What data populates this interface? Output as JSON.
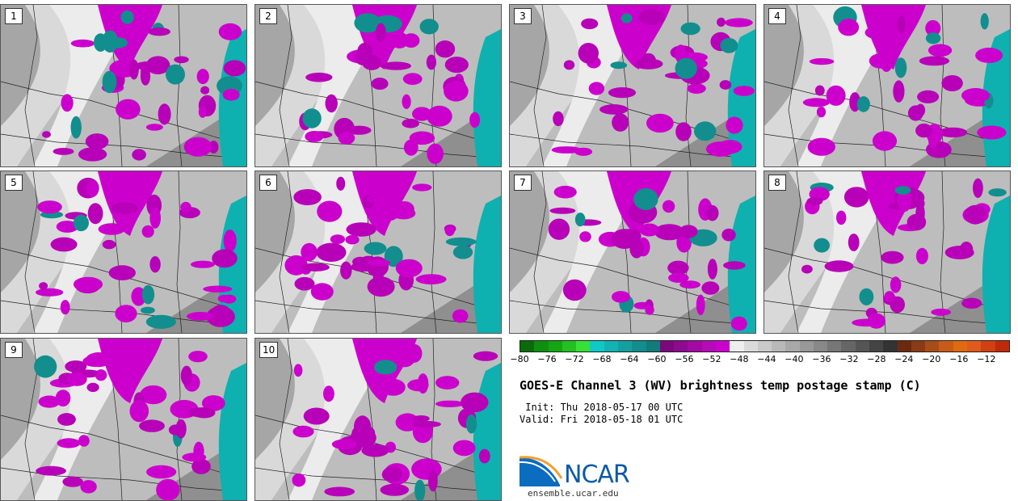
{
  "panels": [
    {
      "label": "1"
    },
    {
      "label": "2"
    },
    {
      "label": "3"
    },
    {
      "label": "4"
    },
    {
      "label": "5"
    },
    {
      "label": "6"
    },
    {
      "label": "7"
    },
    {
      "label": "8"
    },
    {
      "label": "9"
    },
    {
      "label": "10"
    }
  ],
  "legend": {
    "ticks": [
      "−80",
      "−76",
      "−72",
      "−68",
      "−64",
      "−60",
      "−56",
      "−52",
      "−48",
      "−44",
      "−40",
      "−36",
      "−32",
      "−28",
      "−24",
      "−20",
      "−16",
      "−12"
    ],
    "colors": [
      "#0a6b0a",
      "#0f8f0f",
      "#13a513",
      "#22c022",
      "#36e136",
      "#0fc9c9",
      "#12b3b3",
      "#13a0a0",
      "#128e8e",
      "#117c7c",
      "#7a0a7a",
      "#8f0a8f",
      "#a30aa3",
      "#b70ab7",
      "#cc00cc",
      "#eeeeee",
      "#dadada",
      "#c9c9c9",
      "#b8b8b8",
      "#a8a8a8",
      "#989898",
      "#888888",
      "#777777",
      "#666666",
      "#555555",
      "#444444",
      "#333333",
      "#6b2a10",
      "#8a3a14",
      "#a84c18",
      "#c85c16",
      "#e06a10",
      "#e05a1a",
      "#d04010",
      "#c02a0a"
    ]
  },
  "title": "GOES-E Channel 3 (WV) brightness temp postage stamp (C)",
  "init": " Init: Thu 2018-05-17 00 UTC",
  "valid": "Valid: Fri 2018-05-18 01 UTC",
  "logo": {
    "text": "NCAR",
    "site": "ensemble.ucar.edu"
  },
  "map_colors": {
    "magenta": "#cc00cc",
    "teal": "#00b3b3",
    "gray_light": "#d6d6d6",
    "gray_dark": "#8a8a8a"
  }
}
